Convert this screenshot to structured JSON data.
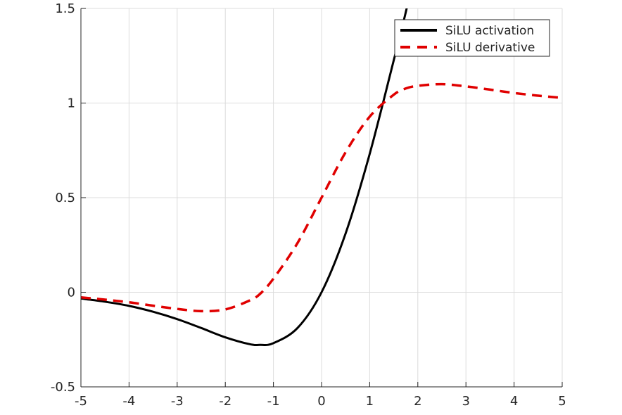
{
  "chart_data": {
    "type": "line",
    "title": "",
    "xlabel": "",
    "ylabel": "",
    "xlim": [
      -5,
      5
    ],
    "ylim": [
      -0.5,
      1.5
    ],
    "x_ticks": [
      -5,
      -4,
      -3,
      -2,
      -1,
      0,
      1,
      2,
      3,
      4,
      5
    ],
    "y_ticks": [
      -0.5,
      0,
      0.5,
      1,
      1.5
    ],
    "x_tick_labels": [
      "-5",
      "-4",
      "-3",
      "-2",
      "-1",
      "0",
      "1",
      "2",
      "3",
      "4",
      "5"
    ],
    "y_tick_labels": [
      "-0.5",
      "0",
      "0.5",
      "1",
      "1.5"
    ],
    "grid": true,
    "legend_position": "top-right",
    "x": [
      -5,
      -4.5,
      -4,
      -3.5,
      -3,
      -2.5,
      -2,
      -1.5,
      -1.28,
      -1,
      -0.5,
      0,
      0.5,
      1,
      1.5,
      1.75,
      2,
      2.5,
      3,
      3.5,
      4,
      4.5,
      5
    ],
    "series": [
      {
        "name": "SiLU activation",
        "color": "#000000",
        "style": "solid",
        "values": [
          -0.033,
          -0.05,
          -0.072,
          -0.103,
          -0.142,
          -0.189,
          -0.238,
          -0.274,
          -0.278,
          -0.269,
          -0.189,
          0.0,
          0.311,
          0.731,
          1.226,
          1.48,
          1.762,
          null,
          null,
          null,
          null,
          null,
          null
        ]
      },
      {
        "name": "SiLU derivative",
        "color": "#e00000",
        "style": "dashed",
        "values": [
          -0.027,
          -0.039,
          -0.053,
          -0.071,
          -0.088,
          -0.1,
          -0.091,
          -0.044,
          -0.009,
          0.072,
          0.26,
          0.5,
          0.74,
          0.928,
          1.044,
          1.077,
          1.091,
          1.1,
          1.088,
          1.071,
          1.053,
          1.039,
          1.027
        ]
      }
    ]
  }
}
